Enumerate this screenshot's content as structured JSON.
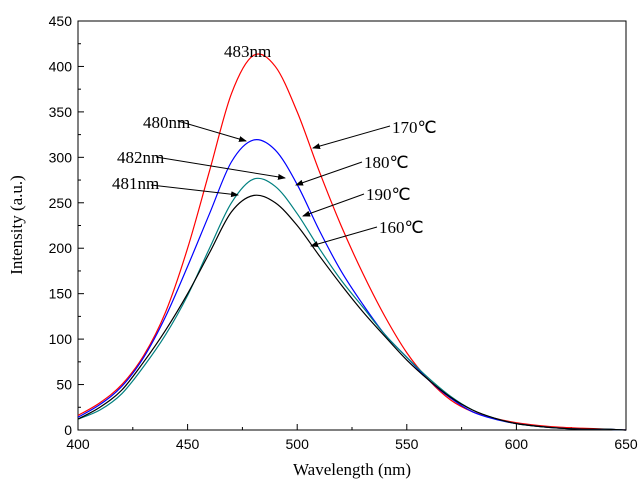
{
  "chart_data": {
    "type": "line",
    "xlabel": "Wavelength (nm)",
    "ylabel": "Intensity (a.u.)",
    "xlim": [
      400,
      650
    ],
    "ylim": [
      0,
      450
    ],
    "x_ticks": [
      400,
      450,
      500,
      550,
      600,
      650
    ],
    "y_ticks": [
      0,
      50,
      100,
      150,
      200,
      250,
      300,
      350,
      400,
      450
    ],
    "grid": false,
    "x": [
      400,
      410,
      420,
      430,
      440,
      450,
      460,
      470,
      480,
      490,
      500,
      510,
      520,
      530,
      540,
      550,
      560,
      570,
      580,
      590,
      600,
      610,
      620,
      630,
      640,
      650
    ],
    "series": [
      {
        "name": "170℃",
        "color": "#ff0000",
        "values": [
          16,
          30,
          50,
          82,
          130,
          200,
          285,
          370,
          412,
          400,
          350,
          285,
          225,
          172,
          125,
          85,
          55,
          33,
          20,
          13,
          8,
          5,
          3,
          2,
          1,
          0
        ],
        "peak_x": 483
      },
      {
        "name": "180℃",
        "color": "#0000ff",
        "values": [
          14,
          28,
          48,
          80,
          125,
          180,
          238,
          295,
          319,
          308,
          270,
          220,
          175,
          138,
          105,
          80,
          55,
          35,
          20,
          12,
          7,
          4,
          2,
          1,
          1,
          0
        ],
        "peak_x": 480
      },
      {
        "name": "190℃",
        "color": "#008080",
        "values": [
          12,
          22,
          40,
          70,
          105,
          148,
          200,
          250,
          276,
          268,
          238,
          200,
          165,
          135,
          105,
          80,
          57,
          37,
          22,
          13,
          7,
          4,
          2,
          1,
          1,
          0
        ],
        "peak_x": 482
      },
      {
        "name": "160℃",
        "color": "#000000",
        "values": [
          12,
          25,
          44,
          75,
          110,
          150,
          195,
          240,
          258,
          250,
          225,
          192,
          160,
          130,
          103,
          77,
          55,
          36,
          22,
          13,
          7,
          4,
          2,
          1,
          1,
          0
        ],
        "peak_x": 481
      }
    ],
    "annotations": {
      "peak_170": "483nm",
      "peak_180": "480nm",
      "peak_190": "482nm",
      "peak_160": "481nm",
      "label_170": "170℃",
      "label_180": "180℃",
      "label_190": "190℃",
      "label_160": "160℃"
    }
  }
}
